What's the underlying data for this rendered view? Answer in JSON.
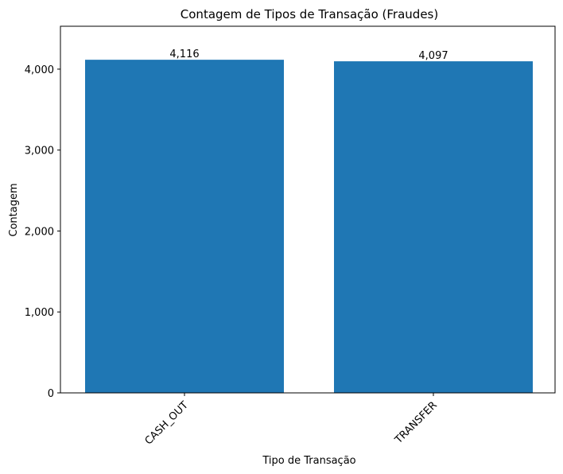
{
  "chart_data": {
    "type": "bar",
    "title": "Contagem de Tipos de Transação (Fraudes)",
    "xlabel": "Tipo de Transação",
    "ylabel": "Contagem",
    "categories": [
      "CASH_OUT",
      "TRANSFER"
    ],
    "values": [
      4116,
      4097
    ],
    "data_labels": [
      "4,116",
      "4,097"
    ],
    "yticks": [
      0,
      1000,
      2000,
      3000,
      4000
    ],
    "ytick_labels": [
      "0",
      "1,000",
      "2,000",
      "3,000",
      "4,000"
    ],
    "ylim": [
      0,
      4530
    ],
    "bar_color": "#1f77b4",
    "grid": false,
    "x_tick_rotation": "45 degrees"
  }
}
